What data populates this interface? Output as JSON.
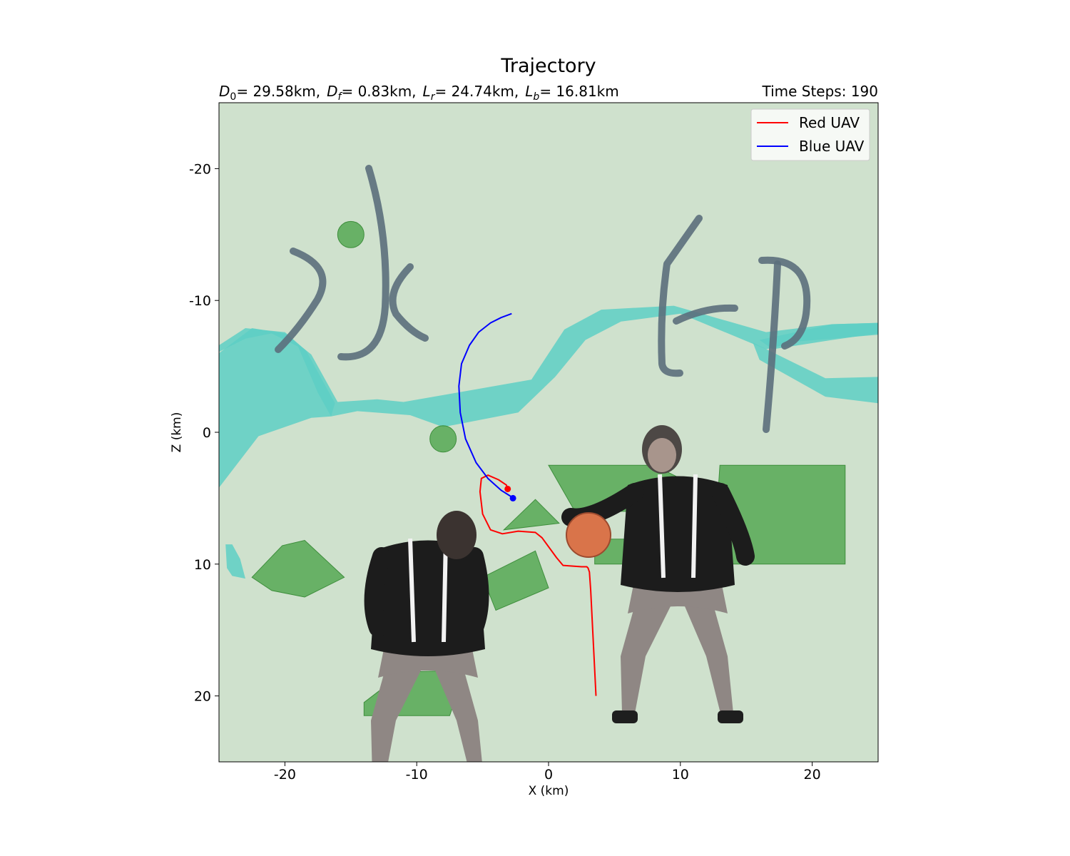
{
  "chart_data": {
    "type": "line",
    "title": "Trajectory",
    "subtitle_left": {
      "D0_label": "D",
      "D0_sub": "0",
      "D0_value": "= 29.58km,",
      "Df_label": "D",
      "Df_sub": "f",
      "Df_value": "= 0.83km,",
      "Lr_label": "L",
      "Lr_sub": "r",
      "Lr_value": "= 24.74km,",
      "Lb_label": "L",
      "Lb_sub": "b",
      "Lb_value": "= 16.81km"
    },
    "subtitle_right": "Time Steps: 190",
    "xlabel": "X (km)",
    "ylabel": "Z (km)",
    "xlim": [
      -25,
      25
    ],
    "ylim": [
      25,
      -25
    ],
    "y_inverted": true,
    "x_ticks": [
      -20,
      -10,
      0,
      10,
      20
    ],
    "y_ticks": [
      -20,
      -10,
      0,
      10,
      20
    ],
    "legend_position": "top-right",
    "background_color": "#cfe1cd",
    "series": [
      {
        "name": "Red UAV",
        "color": "#ff0000",
        "x": [
          3.6,
          3.4,
          3.2,
          3.1,
          3.0,
          2.9,
          2.5,
          1.1,
          0.6,
          -0.5,
          -1.0,
          -2.3,
          -3.5,
          -4.4,
          -5.0,
          -5.2,
          -5.1,
          -4.6,
          -3.8,
          -3.2,
          -3.1
        ],
        "y": [
          20.0,
          16.0,
          12.0,
          10.6,
          10.3,
          10.2,
          10.2,
          10.1,
          9.5,
          8.0,
          7.6,
          7.5,
          7.7,
          7.4,
          6.2,
          4.5,
          3.5,
          3.25,
          3.6,
          4.0,
          4.3
        ]
      },
      {
        "name": "Blue UAV",
        "color": "#0000ff",
        "x": [
          -2.8,
          -3.6,
          -4.6,
          -5.5,
          -6.3,
          -6.7,
          -6.8,
          -6.6,
          -6.0,
          -5.3,
          -4.4,
          -3.6,
          -2.8
        ],
        "y": [
          4.9,
          4.4,
          3.5,
          2.3,
          0.5,
          -1.5,
          -3.5,
          -5.2,
          -6.6,
          -7.6,
          -8.3,
          -8.7,
          -9.0
        ]
      }
    ],
    "markers": [
      {
        "x": -3.1,
        "y": 4.3,
        "color": "#ff0000"
      },
      {
        "x": -2.7,
        "y": 5.0,
        "color": "#0000ff"
      }
    ],
    "obstacles": {
      "water_color": "#5ecfc4",
      "land_color": "#4ea54c",
      "water_bands": [
        [
          [
            -25,
            -6
          ],
          [
            -22.5,
            -7.9
          ],
          [
            -20,
            -7.5
          ],
          [
            -18,
            -5.9
          ],
          [
            -16,
            -2.3
          ],
          [
            -13,
            -2.5
          ],
          [
            -11,
            -2.3
          ],
          [
            -7,
            -3
          ],
          [
            -1.3,
            -4
          ],
          [
            1.2,
            -7.8
          ],
          [
            4,
            -9.3
          ],
          [
            9.5,
            -9.6
          ],
          [
            16.5,
            -7.6
          ],
          [
            19,
            -7.9
          ],
          [
            21.5,
            -8.2
          ],
          [
            25,
            -8.3
          ],
          [
            25,
            -7.4
          ],
          [
            21.5,
            -7.1
          ],
          [
            19,
            -6.9
          ],
          [
            16.5,
            -6.3
          ],
          [
            10,
            -9
          ],
          [
            5.5,
            -8.4
          ],
          [
            2.8,
            -7
          ],
          [
            0.5,
            -4.2
          ],
          [
            -2.3,
            -1.5
          ],
          [
            -8,
            -0.4
          ],
          [
            -10.5,
            -1.3
          ],
          [
            -14.5,
            -1.6
          ],
          [
            -16.5,
            -1.2
          ],
          [
            -18,
            -1.1
          ],
          [
            -22,
            0.3
          ],
          [
            -25,
            4.2
          ]
        ],
        [
          [
            -16.5,
            -1.2
          ],
          [
            -17.5,
            -3
          ],
          [
            -19,
            -6.5
          ],
          [
            -21,
            -7.5
          ],
          [
            -23,
            -7.1
          ],
          [
            -25,
            -6.1
          ],
          [
            -25,
            -6.6
          ],
          [
            -23,
            -7.9
          ],
          [
            -20,
            -7.6
          ],
          [
            -18.4,
            -6.2
          ],
          [
            -16.2,
            -2.2
          ]
        ],
        [
          [
            16,
            -7
          ],
          [
            21.5,
            -8.2
          ],
          [
            25,
            -8.3
          ],
          [
            25,
            -7.5
          ],
          [
            21.5,
            -7
          ],
          [
            17,
            -6.3
          ]
        ],
        [
          [
            15.5,
            -6.8
          ],
          [
            21,
            -4.1
          ],
          [
            25,
            -4.2
          ],
          [
            25,
            -2.2
          ],
          [
            21,
            -2.7
          ],
          [
            16,
            -5.5
          ]
        ],
        [
          [
            -24.5,
            8.5
          ],
          [
            -24,
            8.5
          ],
          [
            -23.4,
            9.6
          ],
          [
            -23,
            11.1
          ],
          [
            -24,
            10.9
          ],
          [
            -24.4,
            10.3
          ]
        ]
      ],
      "land_polygons": [
        [
          [
            -22.5,
            11
          ],
          [
            -20.2,
            8.6
          ],
          [
            -18.5,
            8.2
          ],
          [
            -15.5,
            11.0
          ],
          [
            -18.5,
            12.5
          ],
          [
            -21,
            12.0
          ]
        ],
        [
          [
            -3.4,
            7.4
          ],
          [
            -1,
            5.1
          ],
          [
            0.8,
            6.9
          ]
        ],
        [
          [
            -5,
            11
          ],
          [
            -1,
            9
          ],
          [
            0,
            11.8
          ],
          [
            -4,
            13.5
          ]
        ],
        [
          [
            0,
            2.5
          ],
          [
            8,
            2.5
          ],
          [
            11,
            4
          ],
          [
            8,
            6.0
          ],
          [
            2,
            6.0
          ]
        ],
        [
          [
            3.5,
            8.1
          ],
          [
            10.5,
            8.1
          ],
          [
            10.5,
            10
          ],
          [
            3.5,
            10
          ]
        ],
        [
          [
            13,
            2.5
          ],
          [
            22.5,
            2.5
          ],
          [
            22.5,
            10
          ],
          [
            12.5,
            10
          ]
        ],
        [
          [
            -14,
            20.5
          ],
          [
            -11,
            18.2
          ],
          [
            -8,
            18.1
          ],
          [
            -7,
            20
          ],
          [
            -7.5,
            21.5
          ],
          [
            -14,
            21.5
          ]
        ]
      ],
      "circles": [
        {
          "x": -15,
          "y": -15,
          "r": 1.0
        },
        {
          "x": -8,
          "y": 0.5,
          "r": 1.0
        }
      ]
    }
  }
}
